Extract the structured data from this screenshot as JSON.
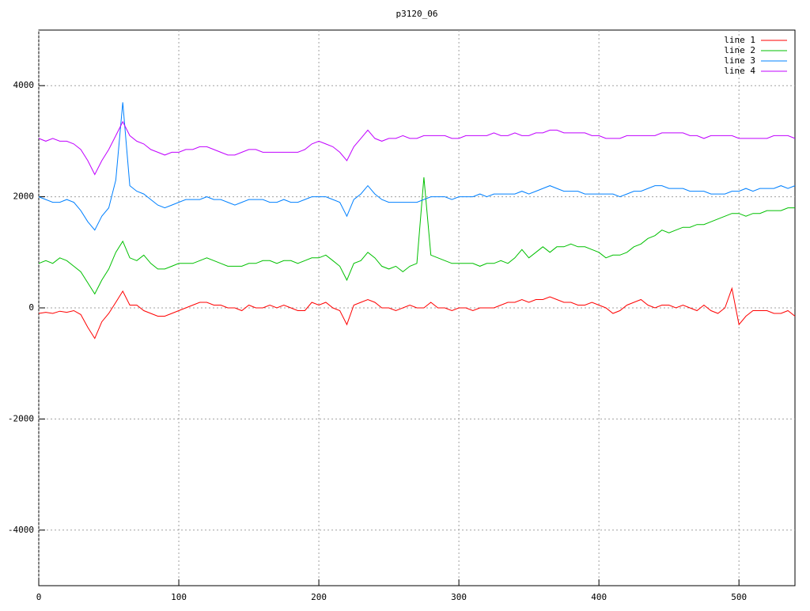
{
  "chart_data": {
    "type": "line",
    "title": "p3120_06",
    "x": [
      0,
      5,
      10,
      15,
      20,
      25,
      30,
      35,
      40,
      45,
      50,
      55,
      60,
      65,
      70,
      75,
      80,
      85,
      90,
      95,
      100,
      105,
      110,
      115,
      120,
      125,
      130,
      135,
      140,
      145,
      150,
      155,
      160,
      165,
      170,
      175,
      180,
      185,
      190,
      195,
      200,
      205,
      210,
      215,
      220,
      225,
      230,
      235,
      240,
      245,
      250,
      255,
      260,
      265,
      270,
      275,
      280,
      285,
      290,
      295,
      300,
      305,
      310,
      315,
      320,
      325,
      330,
      335,
      340,
      345,
      350,
      355,
      360,
      365,
      370,
      375,
      380,
      385,
      390,
      395,
      400,
      405,
      410,
      415,
      420,
      425,
      430,
      435,
      440,
      445,
      450,
      455,
      460,
      465,
      470,
      475,
      480,
      485,
      490,
      495,
      500,
      505,
      510,
      515,
      520,
      525,
      530,
      535,
      540
    ],
    "series": [
      {
        "name": "line 1",
        "color": "#ff0000",
        "values": [
          -100,
          -80,
          -100,
          -60,
          -80,
          -50,
          -120,
          -350,
          -550,
          -250,
          -100,
          100,
          300,
          50,
          50,
          -50,
          -100,
          -150,
          -150,
          -100,
          -50,
          0,
          50,
          100,
          100,
          50,
          50,
          0,
          0,
          -50,
          50,
          0,
          0,
          50,
          0,
          50,
          0,
          -50,
          -50,
          100,
          50,
          100,
          0,
          -50,
          -300,
          50,
          100,
          150,
          100,
          0,
          0,
          -50,
          0,
          50,
          0,
          0,
          100,
          0,
          0,
          -50,
          0,
          0,
          -50,
          0,
          0,
          0,
          50,
          100,
          100,
          150,
          100,
          150,
          150,
          200,
          150,
          100,
          100,
          50,
          50,
          100,
          50,
          0,
          -100,
          -50,
          50,
          100,
          150,
          50,
          0,
          50,
          50,
          0,
          50,
          0,
          -50,
          50,
          -50,
          -100,
          0,
          350,
          -300,
          -150,
          -50,
          -50,
          -50,
          -100,
          -100,
          -50,
          -150
        ]
      },
      {
        "name": "line 2",
        "color": "#00c000",
        "values": [
          800,
          850,
          800,
          900,
          850,
          750,
          650,
          450,
          250,
          500,
          700,
          1000,
          1200,
          900,
          850,
          950,
          800,
          700,
          700,
          750,
          800,
          800,
          800,
          850,
          900,
          850,
          800,
          750,
          750,
          750,
          800,
          800,
          850,
          850,
          800,
          850,
          850,
          800,
          850,
          900,
          900,
          950,
          850,
          750,
          500,
          800,
          850,
          1000,
          900,
          750,
          700,
          750,
          650,
          750,
          800,
          2350,
          950,
          900,
          850,
          800,
          800,
          800,
          800,
          750,
          800,
          800,
          850,
          800,
          900,
          1050,
          900,
          1000,
          1100,
          1000,
          1100,
          1100,
          1150,
          1100,
          1100,
          1050,
          1000,
          900,
          950,
          950,
          1000,
          1100,
          1150,
          1250,
          1300,
          1400,
          1350,
          1400,
          1450,
          1450,
          1500,
          1500,
          1550,
          1600,
          1650,
          1700,
          1700,
          1650,
          1700,
          1700,
          1750,
          1750,
          1750,
          1800,
          1800
        ]
      },
      {
        "name": "line 3",
        "color": "#0080ff",
        "values": [
          2000,
          1950,
          1900,
          1900,
          1950,
          1900,
          1750,
          1550,
          1400,
          1650,
          1800,
          2300,
          3700,
          2200,
          2100,
          2050,
          1950,
          1850,
          1800,
          1850,
          1900,
          1950,
          1950,
          1950,
          2000,
          1950,
          1950,
          1900,
          1850,
          1900,
          1950,
          1950,
          1950,
          1900,
          1900,
          1950,
          1900,
          1900,
          1950,
          2000,
          2000,
          2000,
          1950,
          1900,
          1650,
          1950,
          2050,
          2200,
          2050,
          1950,
          1900,
          1900,
          1900,
          1900,
          1900,
          1950,
          2000,
          2000,
          2000,
          1950,
          2000,
          2000,
          2000,
          2050,
          2000,
          2050,
          2050,
          2050,
          2050,
          2100,
          2050,
          2100,
          2150,
          2200,
          2150,
          2100,
          2100,
          2100,
          2050,
          2050,
          2050,
          2050,
          2050,
          2000,
          2050,
          2100,
          2100,
          2150,
          2200,
          2200,
          2150,
          2150,
          2150,
          2100,
          2100,
          2100,
          2050,
          2050,
          2050,
          2100,
          2100,
          2150,
          2100,
          2150,
          2150,
          2150,
          2200,
          2150,
          2200
        ]
      },
      {
        "name": "line 4",
        "color": "#c000ff",
        "values": [
          3050,
          3000,
          3050,
          3000,
          3000,
          2950,
          2850,
          2650,
          2400,
          2650,
          2850,
          3100,
          3350,
          3100,
          3000,
          2950,
          2850,
          2800,
          2750,
          2800,
          2800,
          2850,
          2850,
          2900,
          2900,
          2850,
          2800,
          2750,
          2750,
          2800,
          2850,
          2850,
          2800,
          2800,
          2800,
          2800,
          2800,
          2800,
          2850,
          2950,
          3000,
          2950,
          2900,
          2800,
          2650,
          2900,
          3050,
          3200,
          3050,
          3000,
          3050,
          3050,
          3100,
          3050,
          3050,
          3100,
          3100,
          3100,
          3100,
          3050,
          3050,
          3100,
          3100,
          3100,
          3100,
          3150,
          3100,
          3100,
          3150,
          3100,
          3100,
          3150,
          3150,
          3200,
          3200,
          3150,
          3150,
          3150,
          3150,
          3100,
          3100,
          3050,
          3050,
          3050,
          3100,
          3100,
          3100,
          3100,
          3100,
          3150,
          3150,
          3150,
          3150,
          3100,
          3100,
          3050,
          3100,
          3100,
          3100,
          3100,
          3050,
          3050,
          3050,
          3050,
          3050,
          3100,
          3100,
          3100,
          3050
        ]
      }
    ],
    "xlim": [
      0,
      540
    ],
    "ylim": [
      -5000,
      5000
    ],
    "xticks": [
      0,
      100,
      200,
      300,
      400,
      500
    ],
    "yticks": [
      -4000,
      -2000,
      0,
      2000,
      4000
    ],
    "grid": true,
    "legend": "top-right"
  }
}
